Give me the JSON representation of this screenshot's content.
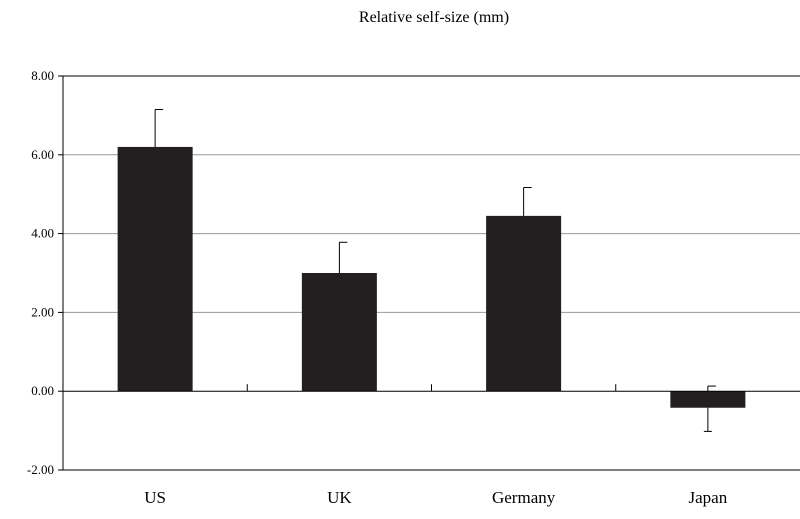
{
  "chart_data": {
    "type": "bar",
    "title": "Relative self-size (mm)",
    "categories": [
      "US",
      "UK",
      "Germany",
      "Japan"
    ],
    "values": [
      6.2,
      3.0,
      4.45,
      -0.42
    ],
    "error_upper": [
      7.15,
      3.78,
      5.17,
      0.13
    ],
    "error_lower": [
      null,
      null,
      null,
      -1.02
    ],
    "ylim": [
      -2.0,
      8.0
    ],
    "yticks": [
      "8.00",
      "6.00",
      "4.00",
      "2.00",
      "0.00",
      "-2.00"
    ],
    "ytick_values": [
      8,
      6,
      4,
      2,
      0,
      -2
    ],
    "grid": true,
    "bar_color": "#231f20",
    "grid_color": "#999999"
  }
}
